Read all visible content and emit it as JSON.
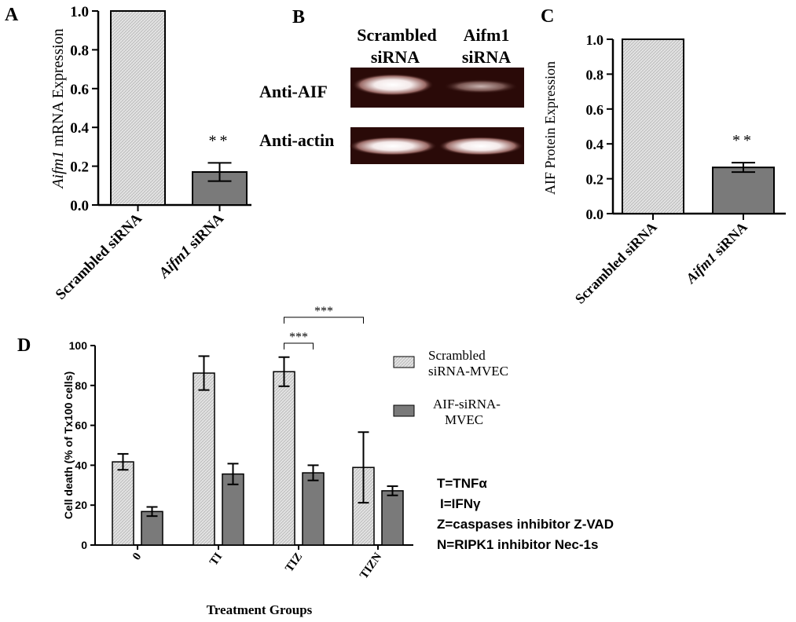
{
  "colors": {
    "axis": "#000000",
    "bar_scrambled_fill": "#e6e6e6",
    "bar_hatch_line": "#b4b4b4",
    "bar_sirna_fill": "#7a7a7a",
    "blot_background": "#2a0a08",
    "blot_band": "#ffffff"
  },
  "panels": {
    "A": {
      "letter": "A"
    },
    "B": {
      "letter": "B"
    },
    "C": {
      "letter": "C"
    },
    "D": {
      "letter": "D"
    }
  },
  "blot": {
    "col1_line1": "Scrambled",
    "col1_line2": "siRNA",
    "col2_line1": "Aifm1",
    "col2_line2": "siRNA",
    "row1_label": "Anti-AIF",
    "row2_label": "Anti-actin"
  },
  "chart_data": [
    {
      "panel": "A",
      "type": "bar",
      "categories": [
        "Scrambled siRNA",
        "Aifm1 siRNA"
      ],
      "category_italic_word": [
        "",
        "Aifm1"
      ],
      "values": [
        1.0,
        0.17
      ],
      "errors": [
        null,
        0.047
      ],
      "ylim": [
        0,
        1.0
      ],
      "yticks": [
        "0.0",
        "0.2",
        "0.4",
        "0.6",
        "0.8",
        "1.0"
      ],
      "ylabel_italic": "Aifm1",
      "ylabel_rest": " mRNA Expression",
      "significance": "**"
    },
    {
      "panel": "C",
      "type": "bar",
      "categories": [
        "Scrambled siRNA",
        "Aifm1 siRNA"
      ],
      "category_italic_word": [
        "",
        "Aifm1"
      ],
      "values": [
        1.0,
        0.265
      ],
      "errors": [
        null,
        0.027
      ],
      "ylim": [
        0,
        1.0
      ],
      "yticks": [
        "0.0",
        "0.2",
        "0.4",
        "0.6",
        "0.8",
        "1.0"
      ],
      "ylabel": "AIF Protein Expression",
      "significance": "**"
    },
    {
      "panel": "D",
      "type": "bar",
      "categories": [
        "0",
        "TI",
        "TIZ",
        "TIZN"
      ],
      "series": [
        {
          "name": "Scrambled siRNA-MVEC",
          "name_line1": "Scrambled",
          "name_line2": "siRNA-MVEC",
          "values": [
            41.7,
            86.2,
            86.9,
            38.9
          ],
          "errors": [
            4.0,
            8.5,
            7.3,
            17.7
          ]
        },
        {
          "name": "AIF-siRNA-MVEC",
          "name_line1": "AIF-siRNA-",
          "name_line2": "MVEC",
          "values": [
            16.8,
            35.6,
            36.2,
            27.2
          ],
          "errors": [
            2.3,
            5.2,
            3.8,
            2.3
          ]
        }
      ],
      "ylim": [
        0,
        100
      ],
      "yticks": [
        "0",
        "20",
        "40",
        "60",
        "80",
        "100"
      ],
      "xlabel": "Treatment Groups",
      "ylabel": "Cell death (% of Tx100 cells)",
      "significance": [
        {
          "label": "***",
          "from_category": "TIZ",
          "from_series": 0,
          "to_category": "TIZ",
          "to_series": 1
        },
        {
          "label": "***",
          "from_category": "TIZ",
          "from_series": 0,
          "to_category": "TIZN",
          "to_series": 0
        }
      ],
      "legend_position": "right",
      "notes": [
        "T=TNFα",
        "I=IFNγ",
        "Z=caspases inhibitor Z-VAD",
        "N=RIPK1 inhibitor Nec-1s"
      ]
    }
  ]
}
